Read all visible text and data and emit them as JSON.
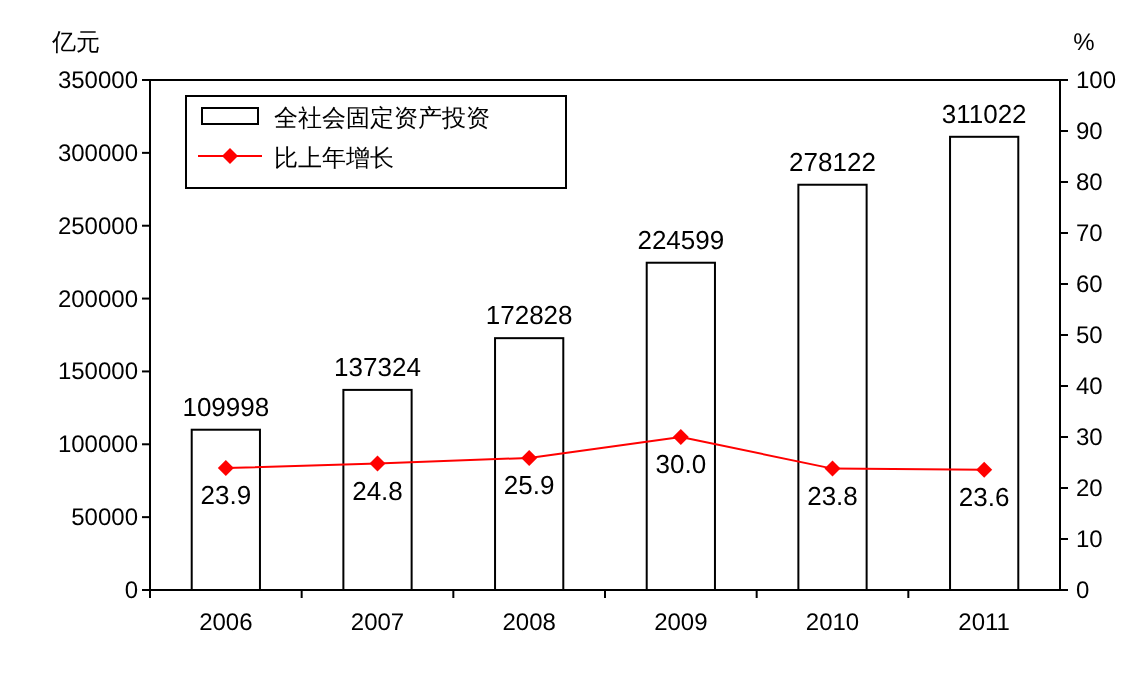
{
  "chart_data": {
    "type": "bar",
    "ylabel": "亿元",
    "y2label": "%",
    "categories": [
      "2006",
      "2007",
      "2008",
      "2009",
      "2010",
      "2011"
    ],
    "series": [
      {
        "name": "全社会固定资产投资",
        "color": "#ffffff",
        "values": [
          109998,
          137324,
          172828,
          224599,
          278122,
          311022
        ]
      },
      {
        "name": "比上年增长",
        "type": "line",
        "axis": "y2",
        "color": "#ff0000",
        "marker": "diamond",
        "values": [
          23.9,
          24.8,
          25.9,
          30.0,
          23.8,
          23.6
        ],
        "value_labels": [
          "23.9",
          "24.8",
          "25.9",
          "30.0",
          "23.8",
          "23.6"
        ]
      }
    ],
    "ylim": [
      0,
      350000
    ],
    "yticks": [
      0,
      50000,
      100000,
      150000,
      200000,
      250000,
      300000,
      350000
    ],
    "y2lim": [
      0,
      100
    ],
    "y2ticks": [
      0,
      10,
      20,
      30,
      40,
      50,
      60,
      70,
      80,
      90,
      100
    ],
    "data_labels": true,
    "legend": "top left"
  }
}
